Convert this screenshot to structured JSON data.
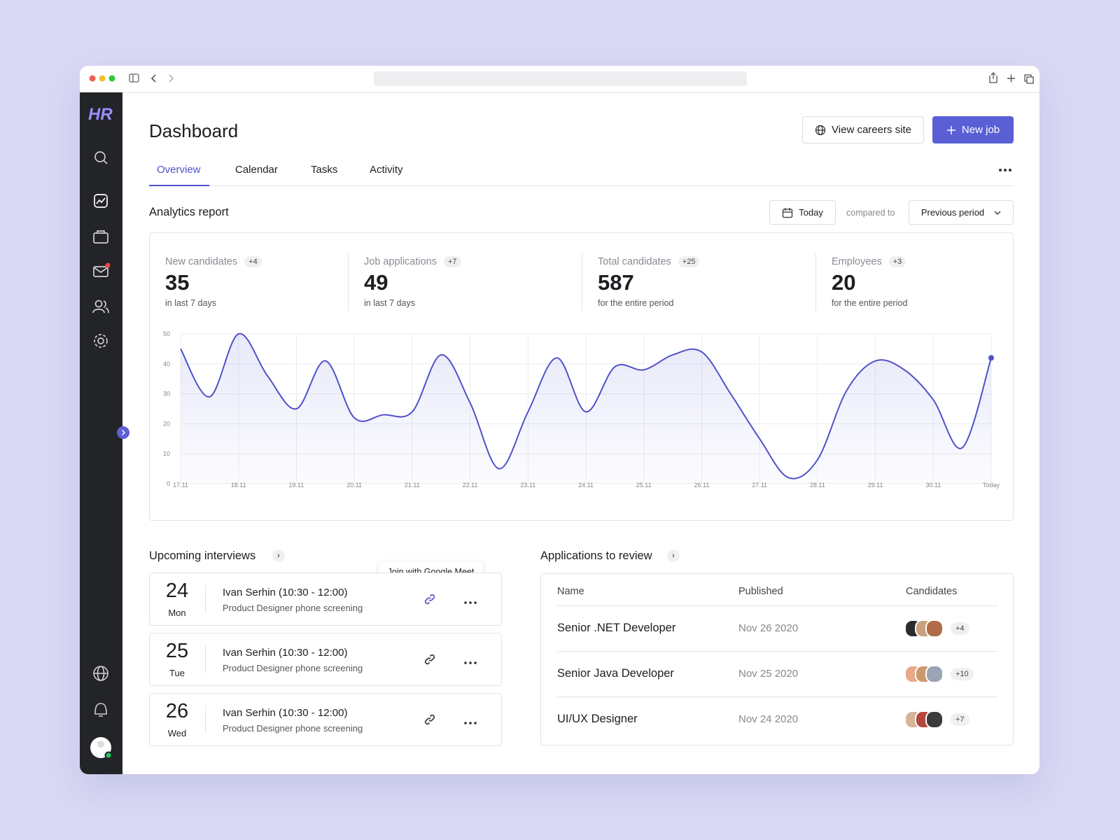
{
  "sidebar": {
    "logo": "HR"
  },
  "header": {
    "title": "Dashboard",
    "buttons": [
      "View careers site",
      "New job"
    ]
  },
  "tabs": [
    "Overview",
    "Calendar",
    "Tasks",
    "Activity"
  ],
  "analytics": {
    "title": "Analytics report",
    "date_button": "Today",
    "compared_to": "compared to",
    "period": "Previous period",
    "stats": [
      {
        "label": "New candidates",
        "change": "+4",
        "value": 35,
        "note": "in last 7 days"
      },
      {
        "label": "Job applications",
        "change": "+7",
        "value": 49,
        "note": "in last 7 days"
      },
      {
        "label": "Total candidates",
        "change": "+25",
        "value": 587,
        "note": "for the entire period"
      },
      {
        "label": "Employees",
        "change": "+3",
        "value": 20,
        "note": "for the entire period"
      }
    ]
  },
  "chart_data": {
    "type": "line",
    "x": [
      "17.11",
      null,
      "18.11",
      null,
      "19.11",
      null,
      "20.11",
      null,
      "21.11",
      null,
      "22.11",
      null,
      "23.11",
      null,
      "24.11",
      null,
      "25.11",
      null,
      "26.11",
      null,
      "27.11",
      null,
      "28.11",
      null,
      "29.11",
      null,
      "30.11",
      null,
      "Today"
    ],
    "values": [
      45,
      29,
      50,
      36,
      25,
      41,
      22,
      23,
      24,
      43,
      27,
      5,
      24,
      42,
      24,
      39,
      38,
      43,
      44,
      30,
      15,
      2,
      8,
      31,
      41,
      38,
      28,
      12,
      42
    ],
    "color": "#4f52c9",
    "ylim": [
      0,
      50
    ],
    "yticks": [
      0,
      10,
      20,
      30,
      40,
      50
    ],
    "grid": true
  },
  "interviews": {
    "title": "Upcoming interviews",
    "tooltip": "Join with Google Meet",
    "items": [
      {
        "day": 24,
        "weekday": "Mon",
        "name": "Ivan Serhin (10:30 - 12:00)",
        "description": "Product Designer phone screening"
      },
      {
        "day": 25,
        "weekday": "Tue",
        "name": "Ivan Serhin (10:30 - 12:00)",
        "description": "Product Designer phone screening"
      },
      {
        "day": 26,
        "weekday": "Wed",
        "name": "Ivan Serhin (10:30 - 12:00)",
        "description": "Product Designer phone screening"
      }
    ]
  },
  "applications": {
    "title": "Applications to review",
    "columns": [
      "Name",
      "Published",
      "Candidates"
    ],
    "rows": [
      {
        "name": "Senior .NET Developer",
        "published": "Nov 26 2020",
        "more_candidates": "+4"
      },
      {
        "name": "Senior Java Developer",
        "published": "Nov 25 2020",
        "more_candidates": "+10"
      },
      {
        "name": "UI/UX Designer",
        "published": "Nov 24 2020",
        "more_candidates": "+7"
      }
    ]
  }
}
